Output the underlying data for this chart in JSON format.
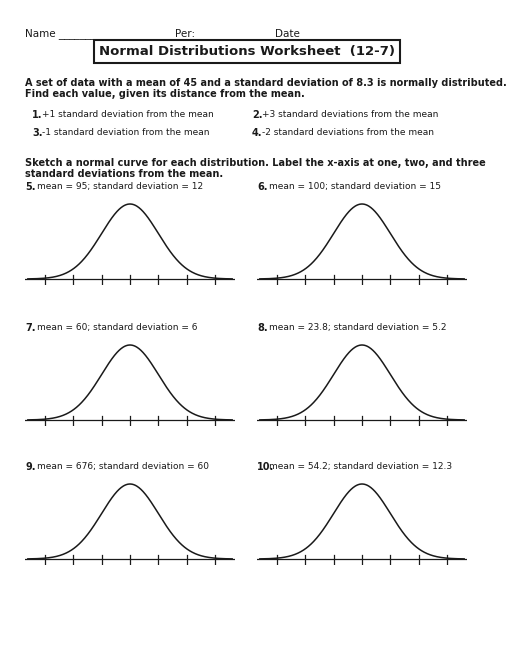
{
  "title": "Normal Distributions Worksheet  (12-7)",
  "name_line_parts": [
    "Name ",
    "___________________",
    "Per: ",
    "_________",
    " Date ",
    "____________"
  ],
  "intro_line1": "A set of data with a mean of 45 and a standard deviation of 8.3 is normally distributed.",
  "intro_line2": "Find each value, given its distance from the mean.",
  "problems_top": [
    {
      "num": "1.",
      "text": "+1 standard deviation from the mean"
    },
    {
      "num": "2.",
      "text": "+3 standard deviations from the mean"
    },
    {
      "num": "3.",
      "text": "-1 standard deviation from the mean"
    },
    {
      "num": "4.",
      "text": "-2 standard deviations from the mean"
    }
  ],
  "sketch_line1": "Sketch a normal curve for each distribution. Label the x-axis at one, two, and three",
  "sketch_line2": "standard deviations from the mean.",
  "distributions": [
    {
      "num": "5.",
      "mean": 95,
      "sd": 12,
      "label": "mean = 95; standard deviation = 12"
    },
    {
      "num": "6.",
      "mean": 100,
      "sd": 15,
      "label": "mean = 100; standard deviation = 15"
    },
    {
      "num": "7.",
      "mean": 60,
      "sd": 6,
      "label": "mean = 60; standard deviation = 6"
    },
    {
      "num": "8.",
      "mean": 23.8,
      "sd": 5.2,
      "label": "mean = 23.8; standard deviation = 5.2"
    },
    {
      "num": "9.",
      "mean": 676,
      "sd": 60,
      "label": "mean = 676; standard deviation = 60"
    },
    {
      "num": "10.",
      "mean": 54.2,
      "sd": 12.3,
      "label": "mean = 54.2; standard deviation = 12.3"
    }
  ],
  "bg_color": "#ffffff",
  "curve_color": "#1a1a1a",
  "axis_color": "#1a1a1a",
  "text_color": "#1a1a1a",
  "title_fontsize": 9.5,
  "body_fontsize": 7.0,
  "label_fontsize": 7.0,
  "name_fontsize": 7.5
}
